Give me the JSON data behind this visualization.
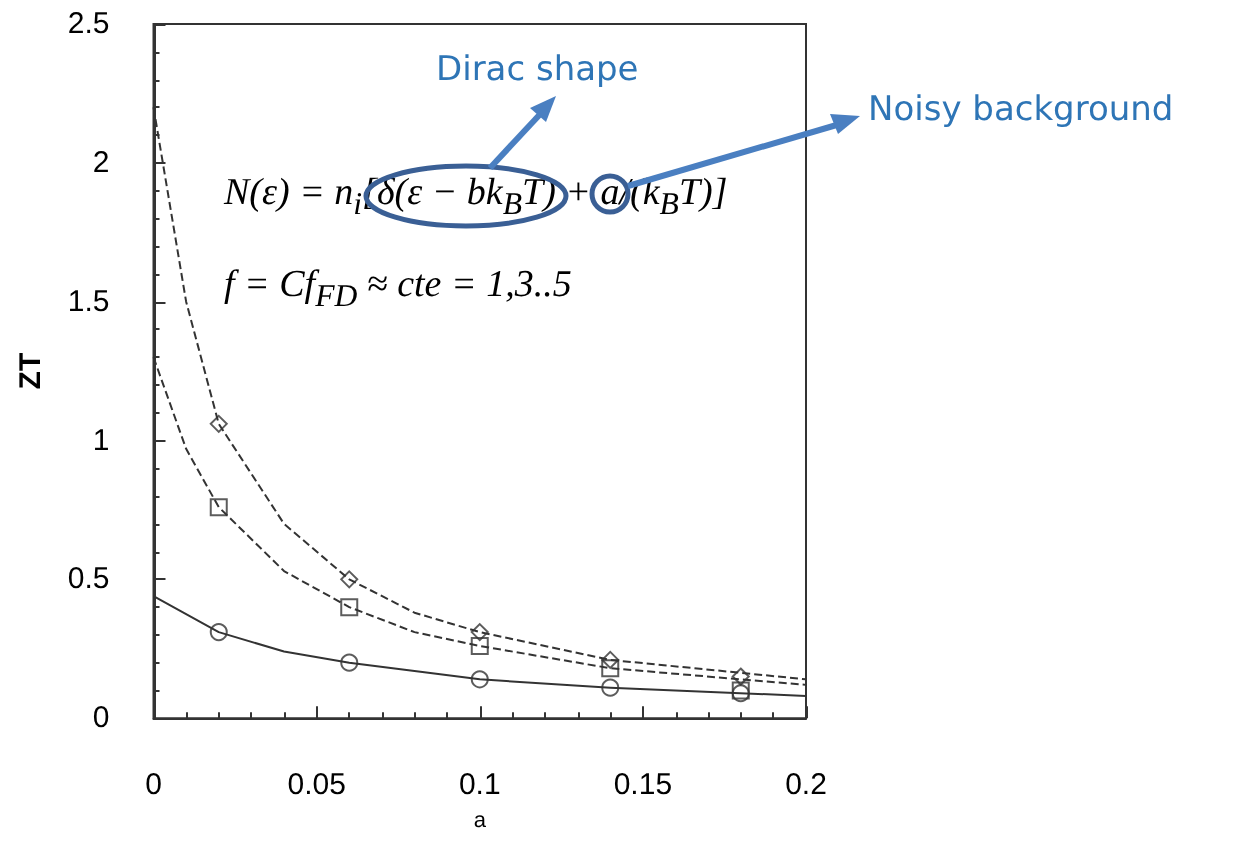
{
  "chart_data": {
    "type": "scatter",
    "xlabel": "a",
    "ylabel": "ZT",
    "xlim": [
      0,
      0.2
    ],
    "xticks": [
      0,
      0.05,
      0.1,
      0.15,
      0.2
    ],
    "ylim": [
      0,
      2.5
    ],
    "yticks": [
      0,
      0.5,
      1,
      1.5,
      2,
      2.5
    ],
    "grid": false,
    "annotations": [
      "N(ε) = n$_{i}$[δ(ε − bk$_{B}$T) + a/(k$_{B}$T)]",
      "f = Cf$_{FD}$ ≈ cte = 1,3..5",
      "Dirac shape",
      "Noisy background"
    ],
    "series": [
      {
        "marker": "diamond",
        "color": "#333333",
        "x": [
          0.02,
          0.06,
          0.1,
          0.14,
          0.18
        ],
        "values": [
          1.06,
          0.5,
          0.31,
          0.21,
          0.15
        ]
      },
      {
        "marker": "square",
        "color": "#333333",
        "x": [
          0.02,
          0.06,
          0.1,
          0.14,
          0.18
        ],
        "values": [
          0.76,
          0.4,
          0.26,
          0.18,
          0.1
        ]
      },
      {
        "marker": "circle",
        "color": "#333333",
        "x": [
          0.02,
          0.06,
          0.1,
          0.14,
          0.18
        ],
        "values": [
          0.31,
          0.2,
          0.14,
          0.11,
          0.09
        ]
      },
      {
        "type": "line",
        "marker": "none",
        "line_style": "dashed",
        "color": "#333333",
        "x": [
          0,
          0.01,
          0.02,
          0.04,
          0.06,
          0.08,
          0.1,
          0.14,
          0.2
        ],
        "values": [
          2.2,
          1.5,
          1.06,
          0.7,
          0.5,
          0.38,
          0.31,
          0.21,
          0.14
        ]
      },
      {
        "type": "line",
        "marker": "none",
        "line_style": "dashed",
        "color": "#333333",
        "x": [
          0,
          0.01,
          0.02,
          0.04,
          0.06,
          0.08,
          0.1,
          0.14,
          0.2
        ],
        "values": [
          1.3,
          0.97,
          0.76,
          0.53,
          0.4,
          0.31,
          0.26,
          0.18,
          0.12
        ]
      },
      {
        "type": "line",
        "marker": "none",
        "line_style": "solid",
        "color": "#333333",
        "x": [
          0,
          0.02,
          0.04,
          0.06,
          0.1,
          0.14,
          0.2
        ],
        "values": [
          0.44,
          0.31,
          0.24,
          0.2,
          0.14,
          0.11,
          0.08
        ]
      }
    ]
  }
}
